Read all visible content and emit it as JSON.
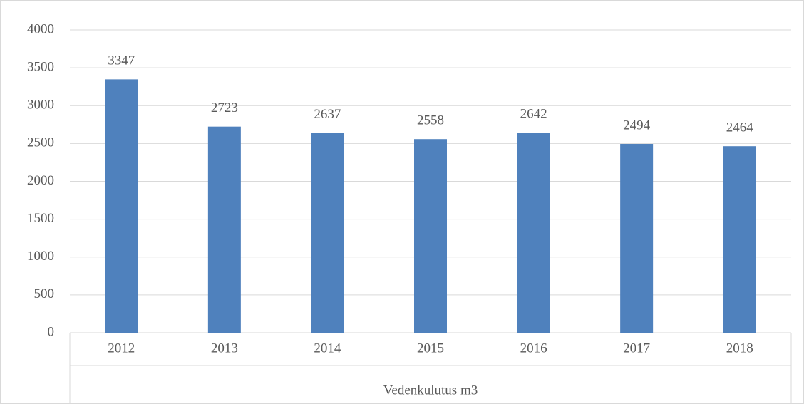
{
  "chart_data": {
    "type": "bar",
    "categories": [
      "2012",
      "2013",
      "2014",
      "2015",
      "2016",
      "2017",
      "2018"
    ],
    "values": [
      3347,
      2723,
      2637,
      2558,
      2642,
      2494,
      2464
    ],
    "color": "#4f81bd",
    "xlabel": "Vedenkulutus m3",
    "ylim": [
      0,
      4000
    ],
    "yticks": [
      0,
      500,
      1000,
      1500,
      2000,
      2500,
      3000,
      3500,
      4000
    ],
    "grid": true,
    "data_labels": true
  }
}
